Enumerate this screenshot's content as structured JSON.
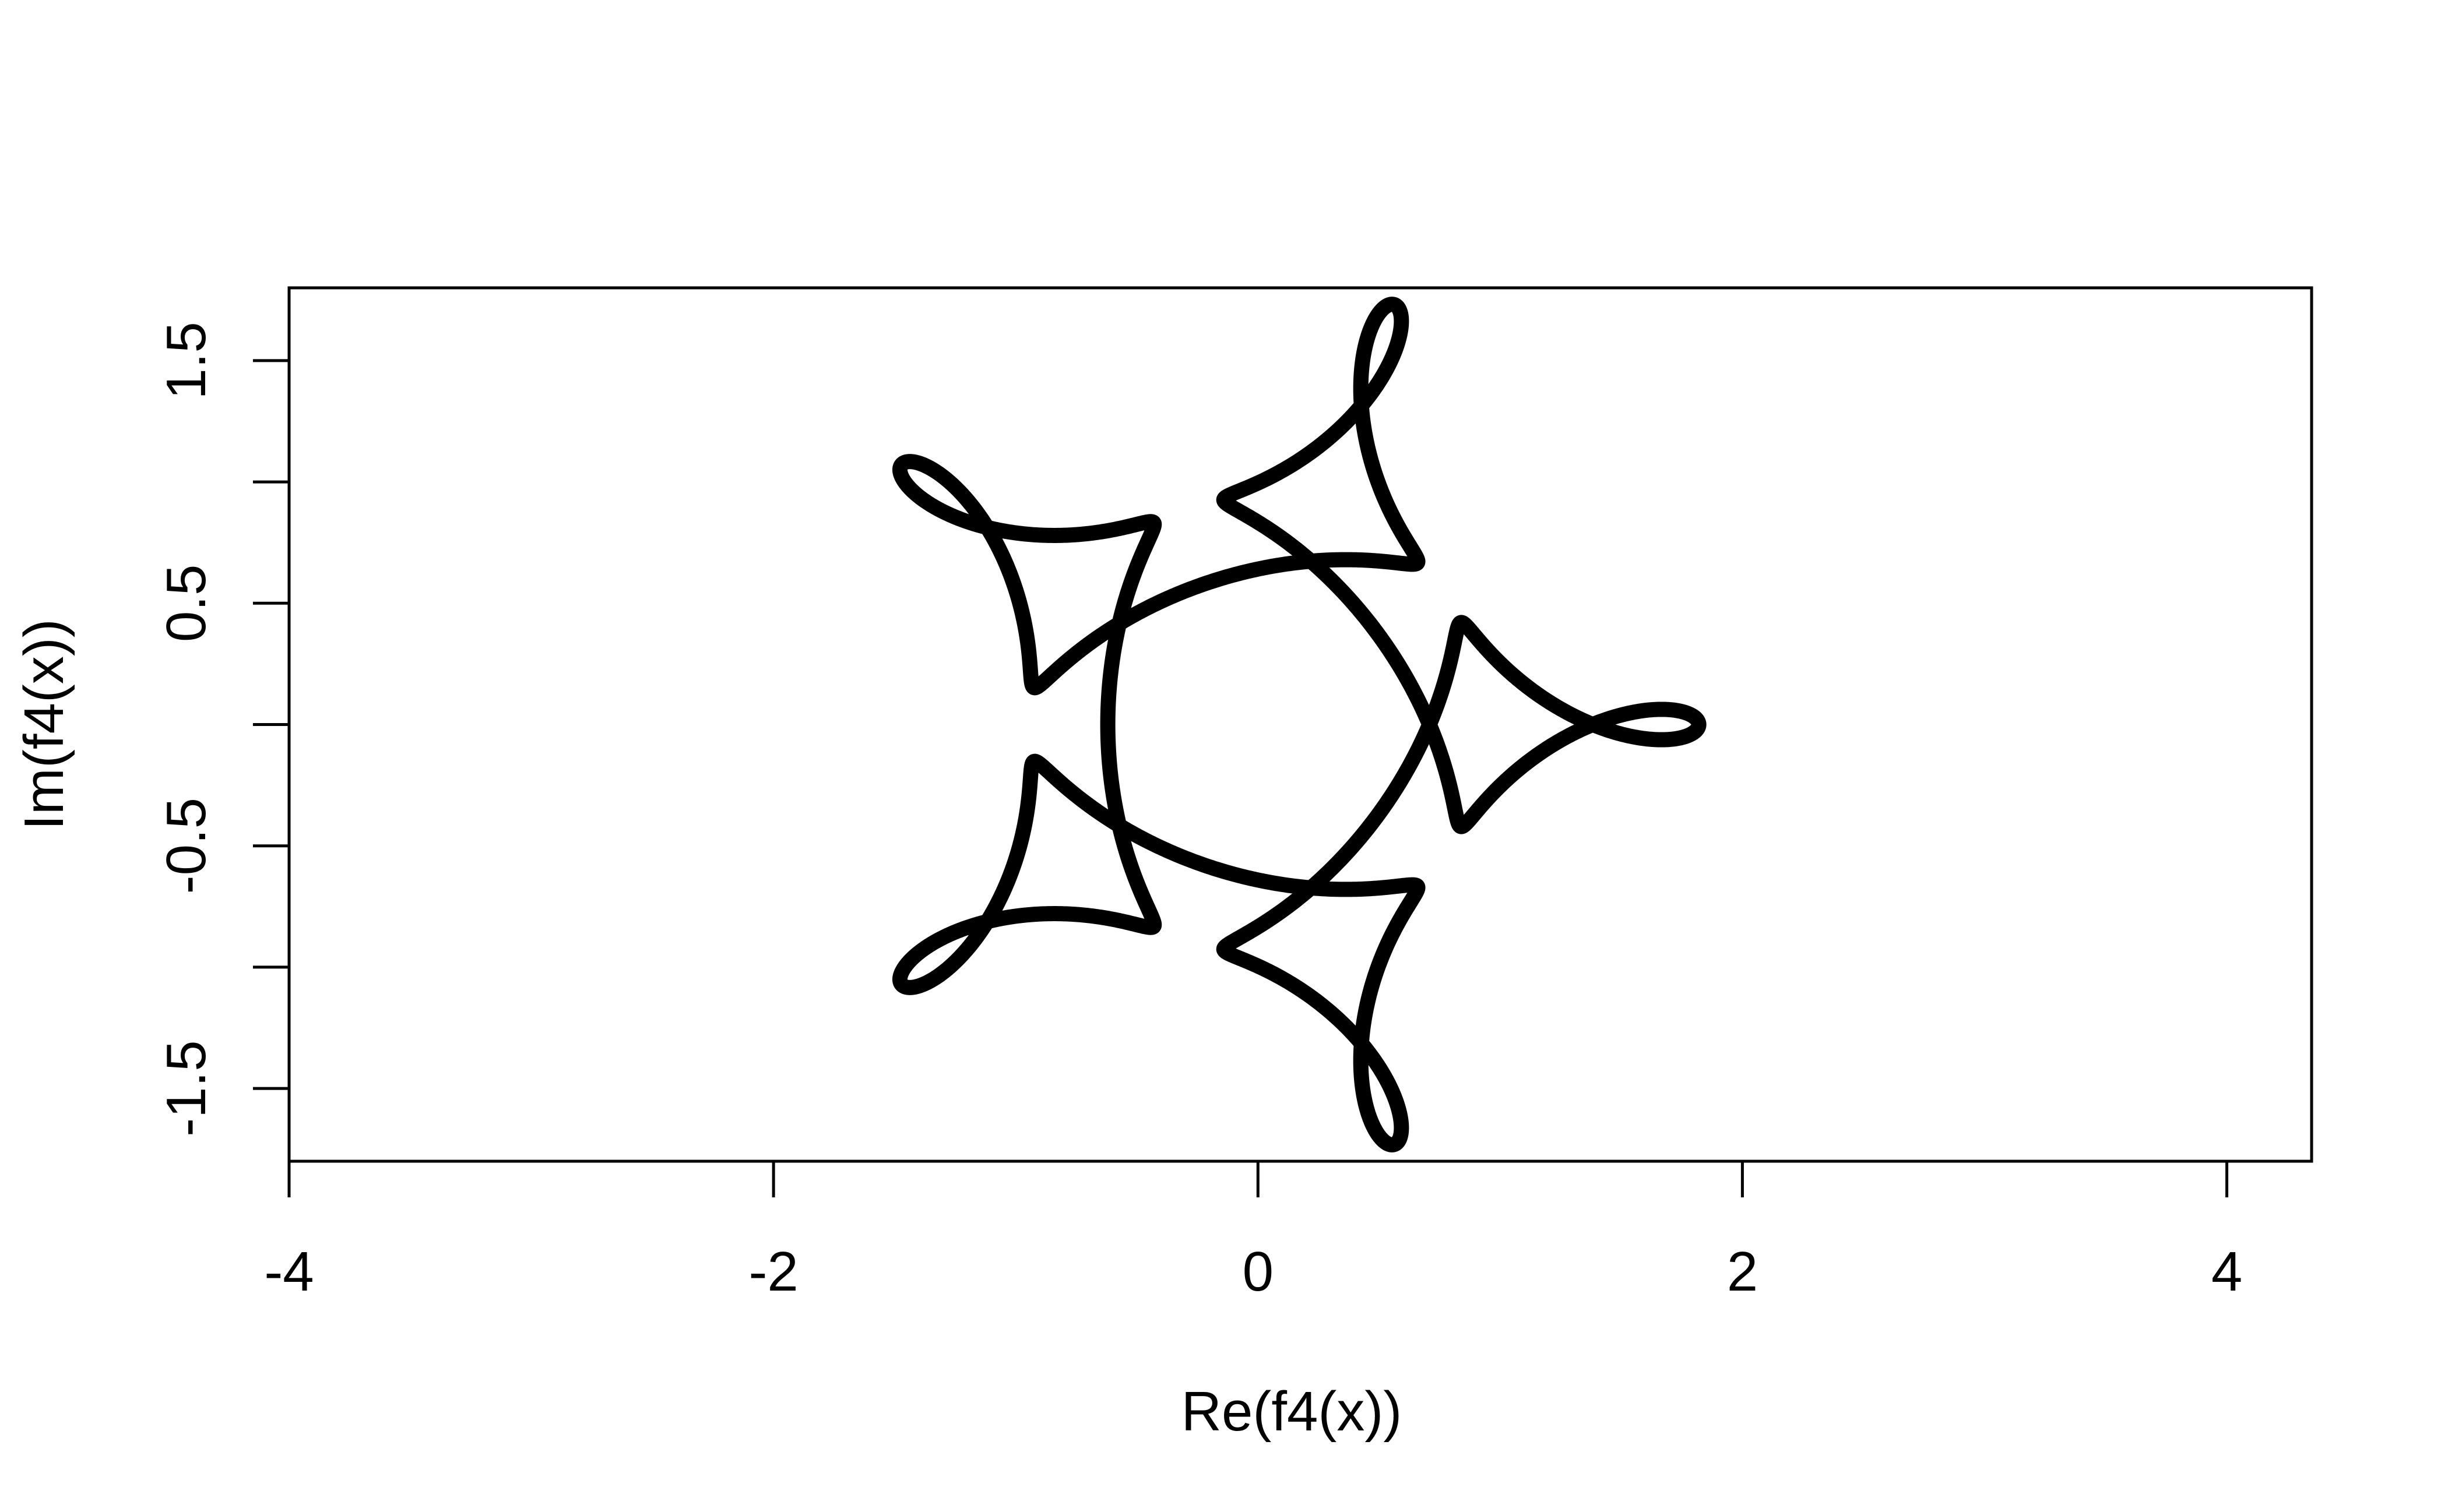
{
  "chart_data": {
    "type": "line",
    "title": "",
    "xlabel": "Re(f4(x))",
    "ylabel": "Im(f4(x))",
    "xlim": [
      -4.0,
      4.35
    ],
    "ylim": [
      -1.8,
      1.8
    ],
    "grid": false,
    "legend": "none",
    "line_color": "#000000",
    "x_ticks": [
      {
        "value": -4,
        "label": "-4"
      },
      {
        "value": -2,
        "label": "-2"
      },
      {
        "value": 0,
        "label": "0"
      },
      {
        "value": 2,
        "label": "2"
      },
      {
        "value": 4,
        "label": "4"
      }
    ],
    "y_ticks": [
      {
        "value": -1.5,
        "label": "-1.5"
      },
      {
        "value": -1.0,
        "label": ""
      },
      {
        "value": -0.5,
        "label": "-0.5"
      },
      {
        "value": 0.0,
        "label": ""
      },
      {
        "value": 0.5,
        "label": "0.5"
      },
      {
        "value": 1.0,
        "label": ""
      },
      {
        "value": 1.5,
        "label": "1.5"
      }
    ],
    "series": [
      {
        "style": "thick-line",
        "curve": {
          "type": "epitrochoid",
          "t_range": [
            0,
            6.283185307
          ],
          "samples": 4000,
          "terms": [
            {
              "amplitude": 1.0,
              "frequency": 1
            },
            {
              "amplitude": 0.6,
              "frequency": -4
            },
            {
              "amplitude": 0.22,
              "frequency": 11
            }
          ]
        }
      }
    ]
  }
}
